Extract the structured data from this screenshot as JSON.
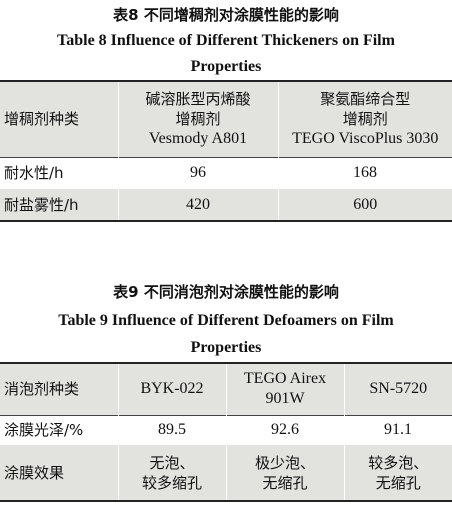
{
  "table8": {
    "caption_cn": "表8  不同增稠剂对涂膜性能的影响",
    "caption_en_line1": "Table 8    Influence of Different Thickeners on Film",
    "caption_en_line2": "Properties",
    "header": {
      "col0": "增稠剂种类",
      "col1_line1": "碱溶胀型丙烯酸",
      "col1_line2": "增稠剂",
      "col1_line3": "Vesmody A801",
      "col2_line1": "聚氨酯缔合型",
      "col2_line2": "增稠剂",
      "col2_line3": "TEGO ViscoPlus 3030"
    },
    "rows": [
      {
        "label": "耐水性/h",
        "v1": "96",
        "v2": "168"
      },
      {
        "label": "耐盐雾性/h",
        "v1": "420",
        "v2": "600"
      }
    ]
  },
  "table9": {
    "caption_cn": "表9  不同消泡剂对涂膜性能的影响",
    "caption_en_line1": "Table 9    Influence of Different Defoamers on Film",
    "caption_en_line2": "Properties",
    "header": {
      "col0": "消泡剂种类",
      "col1": "BYK-022",
      "col2_line1": "TEGO Airex",
      "col2_line2": "901W",
      "col3": "SN-5720"
    },
    "rows": [
      {
        "label": "涂膜光泽/%",
        "v1": "89.5",
        "v2": "92.6",
        "v3": "91.1"
      },
      {
        "label": "涂膜效果",
        "v1_line1": "无泡、",
        "v1_line2": "较多缩孔",
        "v2_line1": "极少泡、",
        "v2_line2": "无缩孔",
        "v3_line1": "较多泡、",
        "v3_line2": "无缩孔"
      }
    ]
  }
}
